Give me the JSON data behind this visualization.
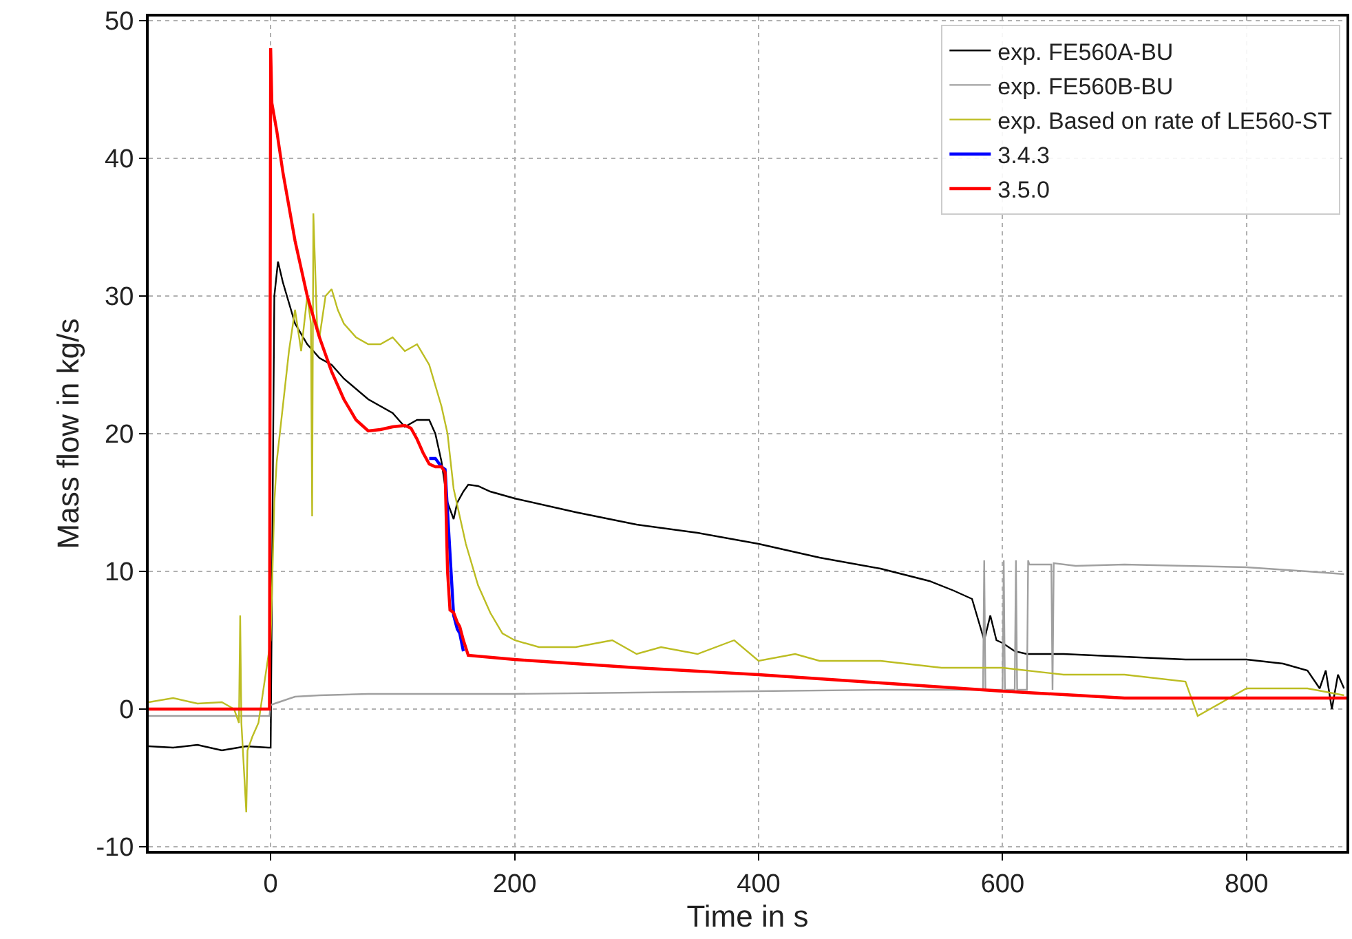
{
  "chart_data": {
    "type": "line",
    "xlabel": "Time in s",
    "ylabel": "Mass flow in kg/s",
    "xlim": [
      -100,
      882
    ],
    "ylim": [
      -10.3,
      50.3
    ],
    "xticks": [
      0,
      200,
      400,
      600,
      800
    ],
    "yticks": [
      -10,
      0,
      10,
      20,
      30,
      40,
      50
    ],
    "grid": true,
    "legend": "top right",
    "marker": "none",
    "line_style": "solid",
    "series": [
      {
        "name": "exp. FE560A-BU",
        "color": "#000000",
        "x": [
          -100,
          -80,
          -60,
          -40,
          -20,
          -2,
          0,
          3,
          6,
          10,
          20,
          30,
          40,
          50,
          60,
          80,
          100,
          110,
          120,
          130,
          135,
          140,
          145,
          150,
          153,
          158,
          162,
          170,
          180,
          200,
          250,
          300,
          350,
          400,
          450,
          500,
          540,
          560,
          575,
          580,
          585,
          590,
          595,
          600,
          610,
          620,
          650,
          700,
          750,
          800,
          830,
          850,
          860,
          865,
          870,
          875,
          880
        ],
        "values": [
          -2.7,
          -2.8,
          -2.6,
          -3.0,
          -2.7,
          -2.8,
          -2.8,
          30,
          32.5,
          31,
          28,
          26.5,
          25.5,
          25,
          24,
          22.5,
          21.5,
          20.5,
          21,
          21,
          20,
          18,
          15,
          13.8,
          15,
          15.8,
          16.3,
          16.2,
          15.8,
          15.3,
          14.3,
          13.4,
          12.8,
          12,
          11,
          10.2,
          9.3,
          8.6,
          8,
          6.5,
          5,
          6.8,
          5,
          4.8,
          4.2,
          4,
          4,
          3.8,
          3.6,
          3.6,
          3.3,
          2.8,
          1.5,
          2.8,
          0,
          2.5,
          1.5
        ]
      },
      {
        "name": "exp. FE560B-BU",
        "color": "#a0a0a0",
        "x": [
          -100,
          -50,
          -1,
          0,
          10,
          20,
          40,
          80,
          150,
          200,
          300,
          400,
          500,
          580,
          584,
          585,
          586,
          600,
          601,
          602,
          610,
          611,
          612,
          620,
          621,
          622,
          640,
          641,
          642,
          660,
          700,
          750,
          800,
          850,
          880
        ],
        "values": [
          -0.5,
          -0.5,
          -0.5,
          0.3,
          0.6,
          0.9,
          1.0,
          1.1,
          1.1,
          1.1,
          1.2,
          1.3,
          1.4,
          1.4,
          1.4,
          10.8,
          1.4,
          1.4,
          10.8,
          1.4,
          1.4,
          10.8,
          1.4,
          1.4,
          10.8,
          10.5,
          10.5,
          1.4,
          10.6,
          10.4,
          10.5,
          10.4,
          10.3,
          10.0,
          9.8
        ]
      },
      {
        "name": "exp. Based on rate of LE560-ST",
        "color": "#bcbd22",
        "x": [
          -100,
          -80,
          -60,
          -40,
          -30,
          -26,
          -25,
          -24,
          -20,
          -19,
          -15,
          -10,
          -5,
          0,
          3,
          5,
          10,
          15,
          20,
          25,
          30,
          33,
          34,
          35,
          38,
          40,
          45,
          50,
          55,
          60,
          70,
          80,
          90,
          100,
          110,
          120,
          130,
          140,
          145,
          150,
          160,
          170,
          180,
          190,
          200,
          220,
          250,
          280,
          300,
          320,
          350,
          380,
          400,
          430,
          450,
          500,
          550,
          600,
          650,
          700,
          750,
          760,
          800,
          850,
          880
        ],
        "values": [
          0.5,
          0.8,
          0.4,
          0.5,
          0,
          -1,
          6.8,
          -1,
          -7.5,
          -3,
          -2,
          -1,
          2,
          5,
          15,
          18,
          22,
          26,
          29,
          26,
          30,
          28,
          14,
          36,
          28,
          27,
          30,
          30.5,
          29,
          28,
          27,
          26.5,
          26.5,
          27,
          26,
          26.5,
          25,
          22,
          20,
          16,
          12,
          9,
          7,
          5.5,
          5,
          4.5,
          4.5,
          5,
          4,
          4.5,
          4,
          5,
          3.5,
          4,
          3.5,
          3.5,
          3,
          3,
          2.5,
          2.5,
          2,
          -0.5,
          1.5,
          1.5,
          1
        ]
      },
      {
        "name": "3.4.3",
        "color": "#0000ff",
        "x": [
          130,
          135,
          140,
          143,
          150,
          153,
          155,
          158
        ],
        "values": [
          18.2,
          18.2,
          17.6,
          17.4,
          6.8,
          5.8,
          5.5,
          4.2
        ]
      },
      {
        "name": "3.5.0",
        "color": "#ff0000",
        "x": [
          -100,
          -1,
          0,
          1,
          5,
          10,
          20,
          30,
          40,
          50,
          60,
          70,
          80,
          90,
          100,
          110,
          115,
          120,
          125,
          130,
          135,
          140,
          143,
          145,
          147,
          150,
          153,
          155,
          158,
          162,
          200,
          300,
          400,
          500,
          600,
          700,
          800,
          882
        ],
        "values": [
          0,
          0,
          48,
          44,
          42,
          39,
          34,
          30,
          27,
          24.5,
          22.5,
          21,
          20.2,
          20.3,
          20.5,
          20.6,
          20.4,
          19.6,
          18.6,
          17.8,
          17.6,
          17.6,
          17.2,
          10,
          7.2,
          7,
          6.3,
          6,
          5,
          3.9,
          3.6,
          3.0,
          2.5,
          1.9,
          1.3,
          0.8,
          0.8,
          0.8
        ]
      }
    ]
  }
}
